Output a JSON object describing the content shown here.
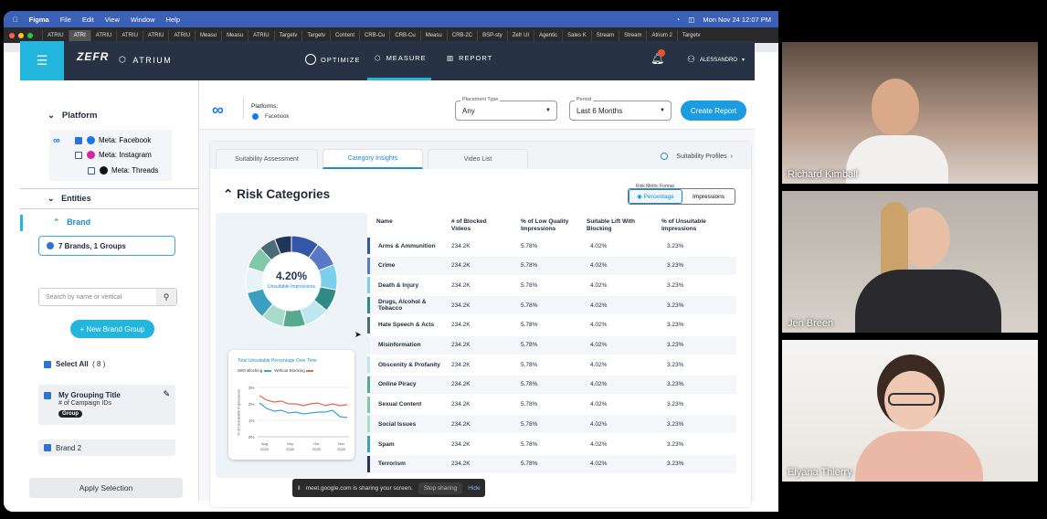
{
  "macbar": {
    "menu": [
      "Figma",
      "File",
      "Edit",
      "View",
      "Window",
      "Help"
    ],
    "clock": "Mon Nov 24 12:07 PM"
  },
  "browser_tabs": [
    "ATRIU",
    "ATRI",
    "ATRIU",
    "ATRIU",
    "ATRIU",
    "ATRIU",
    "Measu",
    "Measu",
    "ATRIU",
    "Targetv",
    "Targetv",
    "Content",
    "CRB-Cu",
    "CRB-Cu",
    "Measu",
    "CRB-2C",
    "BSP-sty",
    "Zefr UI",
    "Agentic",
    "Sales K",
    "Stream",
    "Stream",
    "Atrium 2",
    "Targetv"
  ],
  "header": {
    "brand": "ZEFR",
    "product": "ATRIUM",
    "nav": [
      "OPTIMIZE",
      "MEASURE",
      "REPORT"
    ],
    "user": "ALESSANDRO",
    "notifications": "1"
  },
  "sidebar": {
    "platform_title": "Platform",
    "platforms": [
      {
        "label": "Meta: Facebook",
        "checked": true
      },
      {
        "label": "Meta: Instagram",
        "checked": false
      },
      {
        "label": "Meta: Threads",
        "checked": false
      }
    ],
    "entities_title": "Entities",
    "brand_title": "Brand",
    "brand_summary": "7 Brands, 1 Groups",
    "search_placeholder": "Search by name or vertical",
    "new_brand_group": "+ New Brand Group",
    "select_all": "Select All",
    "select_all_count": "( 8 )",
    "group_title": "My Grouping Title",
    "group_sub": "# of Campaign IDs",
    "group_badge": "Group",
    "brand2": "Brand 2",
    "apply": "Apply Selection"
  },
  "filters": {
    "platforms_label": "Platforms:",
    "platform_value": "Facebook",
    "placement_label": "Placement Type",
    "placement_value": "Any",
    "period_label": "Period",
    "period_value": "Last 6 Months",
    "create_report": "Create Report"
  },
  "panel": {
    "tabs": [
      "Suitability Assessment",
      "Category Insights",
      "Video List"
    ],
    "suitability_profiles": "Suitability Profiles",
    "title": "Risk Categories",
    "rmf_label": "Risk Metric Format",
    "rmf_options": [
      "Percentage",
      "Impressions"
    ],
    "donut_value": "4.20%",
    "donut_label": "Unsuitable Impressions",
    "line_title": "Total Unsuitable Percentage Over Time",
    "line_legend": [
      "With Blocking",
      "Without Blocking"
    ],
    "line_ylabel": "% of Unsuitable Impressions",
    "line_yticks": [
      "3%",
      "2%",
      "1%",
      "0%"
    ],
    "line_xticks": [
      "Aug\n2025",
      "Sep\n2025",
      "Oct\n2025",
      "Nov\n2025"
    ],
    "columns": [
      "Name",
      "# of Blocked Videos",
      "% of Low Quality Impressions",
      "Suitable Lift With Blocking",
      "% of Unsuitable Impressions"
    ],
    "rows": [
      {
        "name": "Arms & Ammunition",
        "blocked": "234.2K",
        "lowq": "5.78%",
        "lift": "4.02%",
        "unsuit": "3.23%",
        "color": "#3456a8"
      },
      {
        "name": "Crime",
        "blocked": "234.2K",
        "lowq": "5.78%",
        "lift": "4.02%",
        "unsuit": "3.23%",
        "color": "#5a78c8"
      },
      {
        "name": "Death & Injury",
        "blocked": "234.2K",
        "lowq": "5.78%",
        "lift": "4.02%",
        "unsuit": "3.23%",
        "color": "#7ad0e8"
      },
      {
        "name": "Drugs, Alcohol & Tobacco",
        "blocked": "234.2K",
        "lowq": "5.78%",
        "lift": "4.02%",
        "unsuit": "3.23%",
        "color": "#2f8a86"
      },
      {
        "name": "Hate Speech & Acts",
        "blocked": "234.2K",
        "lowq": "5.78%",
        "lift": "4.02%",
        "unsuit": "3.23%",
        "color": "#4a6b78"
      },
      {
        "name": "Misinformation",
        "blocked": "234.2K",
        "lowq": "5.78%",
        "lift": "4.02%",
        "unsuit": "3.23%",
        "color": "#e7f3f7"
      },
      {
        "name": "Obscenity & Profanity",
        "blocked": "234.2K",
        "lowq": "5.78%",
        "lift": "4.02%",
        "unsuit": "3.23%",
        "color": "#bde7ef"
      },
      {
        "name": "Online Piracy",
        "blocked": "234.2K",
        "lowq": "5.78%",
        "lift": "4.02%",
        "unsuit": "3.23%",
        "color": "#56a88e"
      },
      {
        "name": "Sexual Content",
        "blocked": "234.2K",
        "lowq": "5.78%",
        "lift": "4.02%",
        "unsuit": "3.23%",
        "color": "#7fc8a8"
      },
      {
        "name": "Social Issues",
        "blocked": "234.2K",
        "lowq": "5.78%",
        "lift": "4.02%",
        "unsuit": "3.23%",
        "color": "#a9dcc8"
      },
      {
        "name": "Spam",
        "blocked": "234.2K",
        "lowq": "5.78%",
        "lift": "4.02%",
        "unsuit": "3.23%",
        "color": "#3d9fc0"
      },
      {
        "name": "Terrorism",
        "blocked": "234.2K",
        "lowq": "5.78%",
        "lift": "4.02%",
        "unsuit": "3.23%",
        "color": "#22365a"
      }
    ]
  },
  "chart_data": {
    "type": "pie",
    "slices": [
      {
        "color": "#3456a8",
        "value": 10
      },
      {
        "color": "#5a78c8",
        "value": 9
      },
      {
        "color": "#7ad0e8",
        "value": 9
      },
      {
        "color": "#2f8a86",
        "value": 8
      },
      {
        "color": "#bde7ef",
        "value": 9
      },
      {
        "color": "#56a88e",
        "value": 8
      },
      {
        "color": "#a9dcc8",
        "value": 8
      },
      {
        "color": "#3d9fc0",
        "value": 10
      },
      {
        "color": "#e7f3f7",
        "value": 9
      },
      {
        "color": "#7fc8a8",
        "value": 8
      },
      {
        "color": "#4a6b78",
        "value": 6
      },
      {
        "color": "#22365a",
        "value": 6
      }
    ]
  },
  "share": {
    "text": "meet.google.com is sharing your screen.",
    "stop": "Stop sharing",
    "hide": "Hide"
  },
  "participants": [
    "Richard Kimball",
    "Jen Breen",
    "Elyana Thierry"
  ]
}
